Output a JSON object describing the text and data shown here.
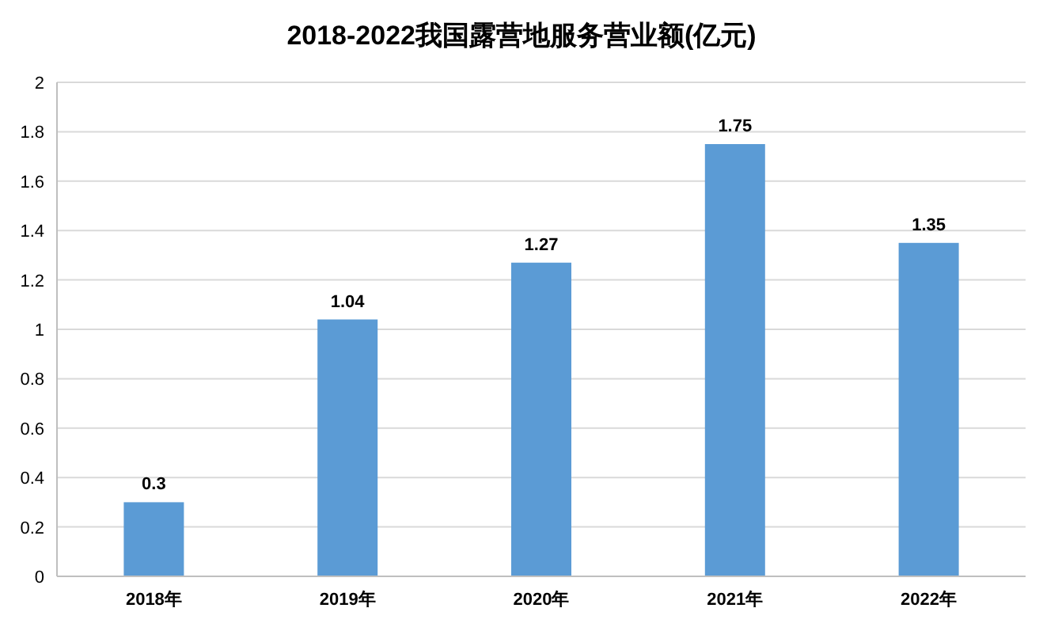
{
  "chart_data": {
    "type": "bar",
    "title": "2018-2022我国露营地服务营业额(亿元)",
    "categories": [
      "2018年",
      "2019年",
      "2020年",
      "2021年",
      "2022年"
    ],
    "values": [
      0.3,
      1.04,
      1.27,
      1.75,
      1.35
    ],
    "color": "#5b9bd5",
    "ylim": [
      0,
      2
    ],
    "yticks": [
      0,
      0.2,
      0.4,
      0.6,
      0.8,
      1,
      1.2,
      1.4,
      1.6,
      1.8,
      2
    ],
    "grid": "y",
    "data_labels": true
  }
}
